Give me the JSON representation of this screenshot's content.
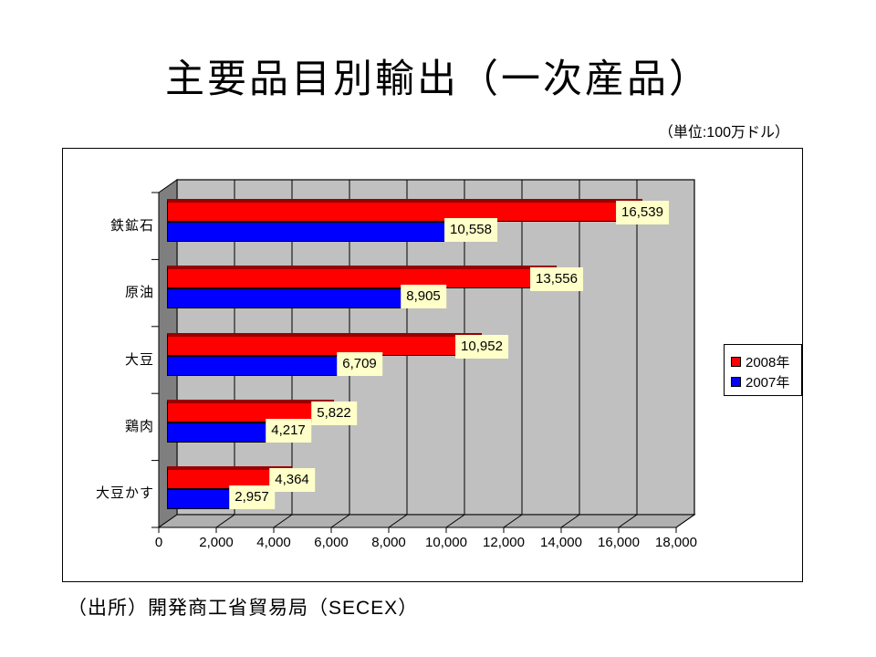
{
  "slide": {
    "title": "主要品目別輸出（一次産品）",
    "unit_note": "（単位:100万ドル）",
    "source": "（出所）開発商工省貿易局（SECEX）"
  },
  "chart_data": {
    "type": "bar",
    "orientation": "horizontal",
    "style": "3d-excel",
    "title": "",
    "xlabel": "",
    "ylabel": "",
    "categories": [
      "鉄鉱石",
      "原油",
      "大豆",
      "鶏肉",
      "大豆かす"
    ],
    "series": [
      {
        "name": "2008年",
        "color": "#ff0000",
        "shadow_color": "#990000",
        "values": [
          16539,
          13556,
          10952,
          5822,
          4364
        ],
        "labels": [
          "16,539",
          "13,556",
          "10,952",
          "5,822",
          "4,364"
        ]
      },
      {
        "name": "2007年",
        "color": "#0000ff",
        "shadow_color": "#000099",
        "values": [
          10558,
          8905,
          6709,
          4217,
          2957
        ],
        "labels": [
          "10,558",
          "8,905",
          "6,709",
          "4,217",
          "2,957"
        ]
      }
    ],
    "xlim": [
      0,
      18000
    ],
    "xtick_values": [
      0,
      2000,
      4000,
      6000,
      8000,
      10000,
      12000,
      14000,
      16000,
      18000
    ],
    "xticks": [
      "0",
      "2,000",
      "4,000",
      "6,000",
      "8,000",
      "10,000",
      "12,000",
      "14,000",
      "16,000",
      "18,000"
    ],
    "grid": true,
    "legend": {
      "position": "right-middle",
      "entries": [
        "2008年",
        "2007年"
      ]
    },
    "colors": {
      "plot_bg": "#c0c0c0",
      "side_wall": "#7f7f7f",
      "floor": "#b0b0b0",
      "value_label_bg": "#ffffc9",
      "outline": "#000000"
    }
  }
}
